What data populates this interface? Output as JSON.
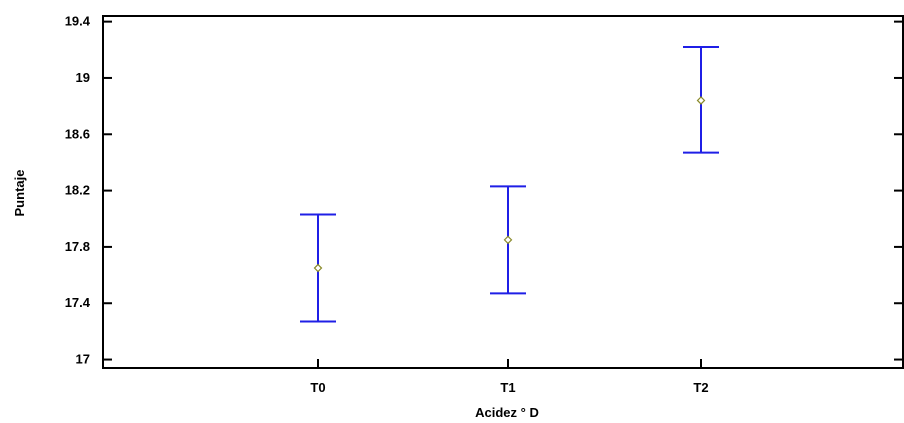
{
  "chart_data": {
    "type": "scatter",
    "subtype": "means-with-error-bars",
    "xlabel": "Acidez ° D",
    "ylabel": "Puntaje",
    "categories": [
      "T0",
      "T1",
      "T2"
    ],
    "means": [
      17.65,
      17.85,
      18.84
    ],
    "lower": [
      17.27,
      17.47,
      18.47
    ],
    "upper": [
      18.03,
      18.23,
      19.22
    ],
    "ylim": [
      16.94,
      19.44
    ],
    "yticks": [
      17,
      17.4,
      17.8,
      18.2,
      18.6,
      19,
      19.4
    ],
    "ytick_labels": [
      "17",
      "17.4",
      "17.8",
      "18.2",
      "18.6",
      "19",
      "19.4"
    ],
    "grid": false,
    "colors": {
      "error_bar": "#1f1fe6",
      "mean_marker": "#8a8a2a",
      "axis": "#000000"
    }
  }
}
